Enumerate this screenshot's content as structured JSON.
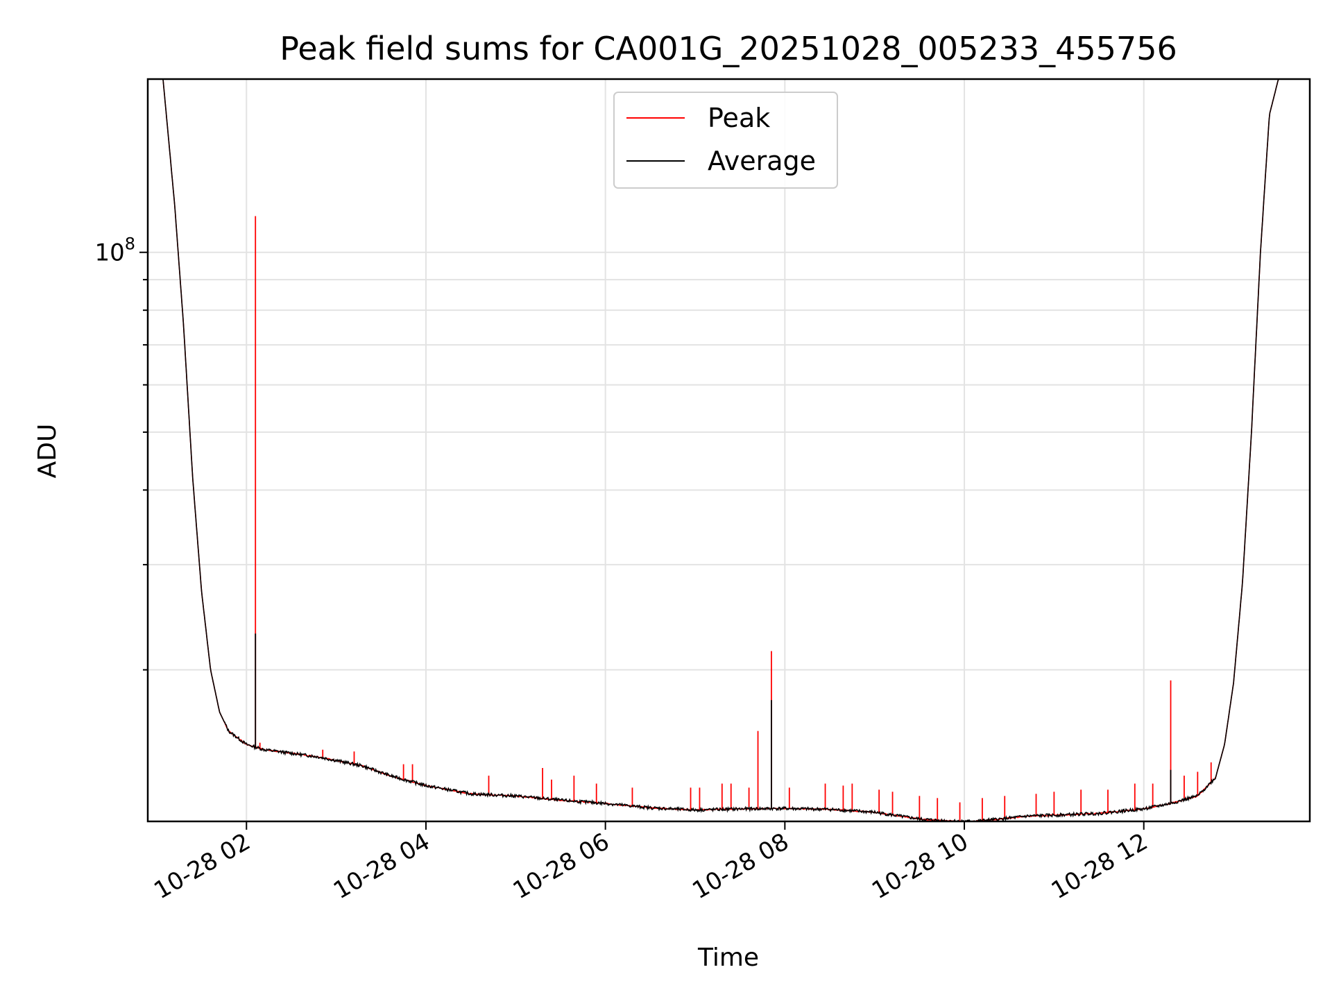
{
  "chart_data": {
    "type": "line",
    "title": "Peak field sums for CA001G_20251028_005233_455756",
    "xlabel": "Time",
    "ylabel": "ADU",
    "yscale": "log",
    "xlim": [
      0.9,
      13.85
    ],
    "ylim": [
      11150000,
      195000000
    ],
    "x_unit": "hours since 2025-10-28 00:00",
    "x_ticks": [
      {
        "value": 2,
        "label": "10-28 02"
      },
      {
        "value": 4,
        "label": "10-28 04"
      },
      {
        "value": 6,
        "label": "10-28 06"
      },
      {
        "value": 8,
        "label": "10-28 08"
      },
      {
        "value": 10,
        "label": "10-28 10"
      },
      {
        "value": 12,
        "label": "10-28 12"
      }
    ],
    "y_major_tick": {
      "value": 100000000,
      "base": "10",
      "exp": "8"
    },
    "y_minor_ticks": [
      20000000,
      30000000,
      40000000,
      50000000,
      60000000,
      70000000,
      80000000,
      90000000
    ],
    "grid": true,
    "legend": {
      "position": "top-center",
      "entries": [
        {
          "name": "Peak",
          "color": "#ff0000"
        },
        {
          "name": "Average",
          "color": "#000000"
        }
      ]
    },
    "series": [
      {
        "name": "Average",
        "color": "#000000",
        "x": [
          0.9,
          1.07,
          1.2,
          1.3,
          1.4,
          1.5,
          1.6,
          1.7,
          1.8,
          2.0,
          2.2,
          2.5,
          2.8,
          3.0,
          3.3,
          3.6,
          4.0,
          4.5,
          5.0,
          5.5,
          6.0,
          6.5,
          7.0,
          7.5,
          8.0,
          8.5,
          9.0,
          9.5,
          9.8,
          10.1,
          10.4,
          10.7,
          11.0,
          11.5,
          12.0,
          12.3,
          12.6,
          12.8,
          12.9,
          13.0,
          13.1,
          13.2,
          13.3,
          13.4,
          13.5,
          13.6,
          13.85
        ],
        "y": [
          195000000,
          195000000,
          120000000,
          75000000,
          42000000,
          27000000,
          20000000,
          17000000,
          15800000,
          15000000,
          14700000,
          14500000,
          14300000,
          14100000,
          13800000,
          13300000,
          12800000,
          12400000,
          12300000,
          12100000,
          11950000,
          11750000,
          11650000,
          11700000,
          11720000,
          11680000,
          11550000,
          11250000,
          11170000,
          11150000,
          11250000,
          11380000,
          11420000,
          11500000,
          11700000,
          11950000,
          12300000,
          13200000,
          15000000,
          19000000,
          28000000,
          50000000,
          100000000,
          170000000,
          195000000,
          195000000,
          195000000
        ]
      },
      {
        "name": "Peak",
        "color": "#ff0000",
        "spikes": [
          {
            "x": 2.1,
            "y": 115000000
          },
          {
            "x": 2.15,
            "y": 15100000
          },
          {
            "x": 2.85,
            "y": 14700000
          },
          {
            "x": 3.2,
            "y": 14600000
          },
          {
            "x": 3.75,
            "y": 13900000
          },
          {
            "x": 3.85,
            "y": 13900000
          },
          {
            "x": 4.7,
            "y": 13300000
          },
          {
            "x": 5.3,
            "y": 13700000
          },
          {
            "x": 5.4,
            "y": 13100000
          },
          {
            "x": 5.65,
            "y": 13300000
          },
          {
            "x": 5.9,
            "y": 12900000
          },
          {
            "x": 6.3,
            "y": 12700000
          },
          {
            "x": 6.95,
            "y": 12700000
          },
          {
            "x": 7.05,
            "y": 12700000
          },
          {
            "x": 7.3,
            "y": 12900000
          },
          {
            "x": 7.4,
            "y": 12900000
          },
          {
            "x": 7.6,
            "y": 12700000
          },
          {
            "x": 7.7,
            "y": 15800000
          },
          {
            "x": 7.85,
            "y": 21500000
          },
          {
            "x": 8.05,
            "y": 12700000
          },
          {
            "x": 8.45,
            "y": 12900000
          },
          {
            "x": 8.65,
            "y": 12800000
          },
          {
            "x": 8.75,
            "y": 12900000
          },
          {
            "x": 9.05,
            "y": 12600000
          },
          {
            "x": 9.2,
            "y": 12500000
          },
          {
            "x": 9.5,
            "y": 12300000
          },
          {
            "x": 9.7,
            "y": 12200000
          },
          {
            "x": 9.95,
            "y": 12000000
          },
          {
            "x": 10.2,
            "y": 12200000
          },
          {
            "x": 10.45,
            "y": 12300000
          },
          {
            "x": 10.8,
            "y": 12400000
          },
          {
            "x": 11.0,
            "y": 12500000
          },
          {
            "x": 11.3,
            "y": 12600000
          },
          {
            "x": 11.6,
            "y": 12600000
          },
          {
            "x": 11.9,
            "y": 12900000
          },
          {
            "x": 12.1,
            "y": 12900000
          },
          {
            "x": 12.3,
            "y": 19200000
          },
          {
            "x": 12.45,
            "y": 13300000
          },
          {
            "x": 12.6,
            "y": 13500000
          },
          {
            "x": 12.75,
            "y": 14000000
          }
        ]
      }
    ]
  }
}
